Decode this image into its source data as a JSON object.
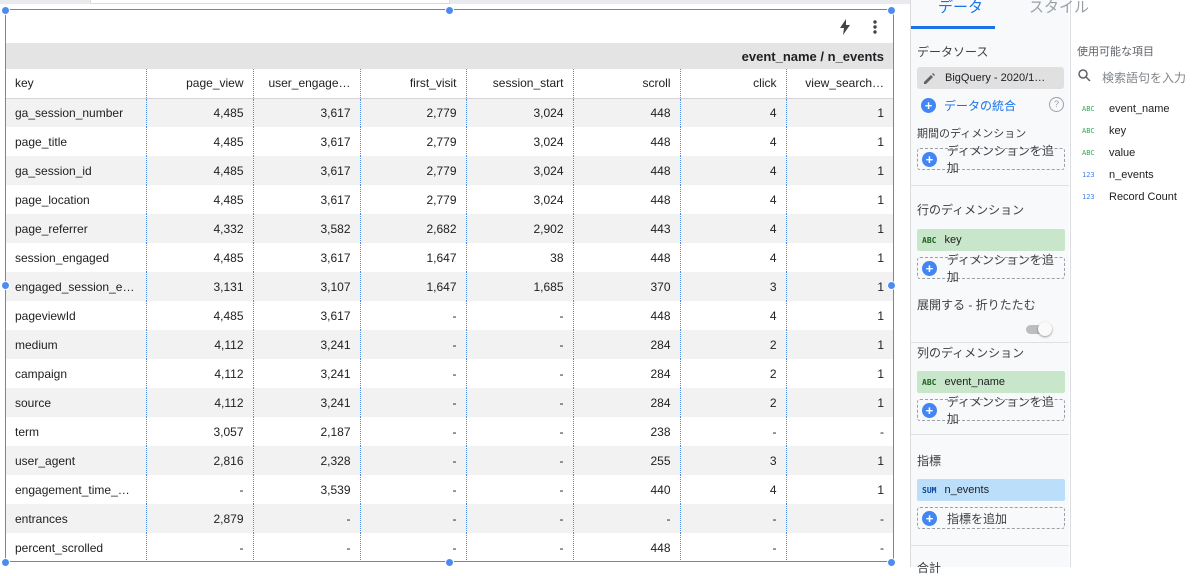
{
  "chart": {
    "column_dimension_header": "event_name / n_events",
    "columns": [
      "key",
      "page_view",
      "user_engage…",
      "first_visit",
      "session_start",
      "scroll",
      "click",
      "view_search…"
    ],
    "rows": [
      [
        "ga_session_number",
        "4,485",
        "3,617",
        "2,779",
        "3,024",
        "448",
        "4",
        "1"
      ],
      [
        "page_title",
        "4,485",
        "3,617",
        "2,779",
        "3,024",
        "448",
        "4",
        "1"
      ],
      [
        "ga_session_id",
        "4,485",
        "3,617",
        "2,779",
        "3,024",
        "448",
        "4",
        "1"
      ],
      [
        "page_location",
        "4,485",
        "3,617",
        "2,779",
        "3,024",
        "448",
        "4",
        "1"
      ],
      [
        "page_referrer",
        "4,332",
        "3,582",
        "2,682",
        "2,902",
        "443",
        "4",
        "1"
      ],
      [
        "session_engaged",
        "4,485",
        "3,617",
        "1,647",
        "38",
        "448",
        "4",
        "1"
      ],
      [
        "engaged_session_ev…",
        "3,131",
        "3,107",
        "1,647",
        "1,685",
        "370",
        "3",
        "1"
      ],
      [
        "pageviewId",
        "4,485",
        "3,617",
        "-",
        "-",
        "448",
        "4",
        "1"
      ],
      [
        "medium",
        "4,112",
        "3,241",
        "-",
        "-",
        "284",
        "2",
        "1"
      ],
      [
        "campaign",
        "4,112",
        "3,241",
        "-",
        "-",
        "284",
        "2",
        "1"
      ],
      [
        "source",
        "4,112",
        "3,241",
        "-",
        "-",
        "284",
        "2",
        "1"
      ],
      [
        "term",
        "3,057",
        "2,187",
        "-",
        "-",
        "238",
        "-",
        "-"
      ],
      [
        "user_agent",
        "2,816",
        "2,328",
        "-",
        "-",
        "255",
        "3",
        "1"
      ],
      [
        "engagement_time_m…",
        "-",
        "3,539",
        "-",
        "-",
        "440",
        "4",
        "1"
      ],
      [
        "entrances",
        "2,879",
        "-",
        "-",
        "-",
        "-",
        "-",
        "-"
      ],
      [
        "percent_scrolled",
        "-",
        "-",
        "-",
        "-",
        "448",
        "-",
        "-"
      ]
    ],
    "toolbar_icons": [
      "lightning-icon",
      "more-vert-icon"
    ]
  },
  "tabs": {
    "data": "データ",
    "style": "スタイル"
  },
  "data_panel": {
    "data_source_title": "データソース",
    "data_source_chip": "BigQuery - 2020/1…",
    "blend_label": "データの統合",
    "date_dimension_title": "期間のディメンション",
    "row_dimension_title": "行のディメンション",
    "row_dimension_chip": {
      "type": "ABC",
      "label": "key"
    },
    "expand_collapse_title": "展開する - 折りたたむ",
    "column_dimension_title": "列のディメンション",
    "column_dimension_chip": {
      "type": "ABC",
      "label": "event_name"
    },
    "metric_title": "指標",
    "metric_chip": {
      "type": "SUM",
      "label": "n_events"
    },
    "add_dimension_label": "ディメンションを追加",
    "add_metric_label": "指標を追加",
    "bottom_truncated_title": "合計"
  },
  "fields_panel": {
    "title": "使用可能な項目",
    "search_placeholder": "検索語句を入力",
    "fields": [
      {
        "type": "ABC",
        "label": "event_name",
        "kind": "dim"
      },
      {
        "type": "ABC",
        "label": "key",
        "kind": "dim"
      },
      {
        "type": "ABC",
        "label": "value",
        "kind": "dim"
      },
      {
        "type": "123",
        "label": "n_events",
        "kind": "met"
      },
      {
        "type": "123",
        "label": "Record Count",
        "kind": "met"
      }
    ]
  },
  "colors": {
    "accent": "#1a73e8",
    "selection_border": "#4a8cf0",
    "dimension_chip": "#c8e6c9",
    "metric_chip": "#bbdefb"
  }
}
